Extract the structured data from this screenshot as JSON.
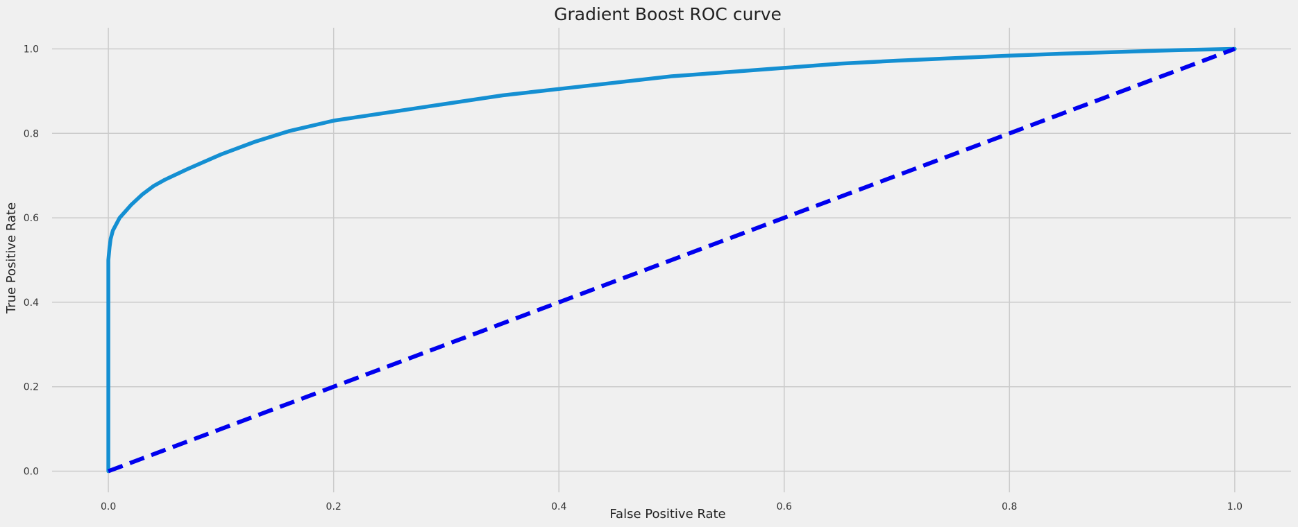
{
  "chart_data": {
    "type": "line",
    "title": "Gradient Boost ROC curve",
    "xlabel": "False Positive Rate",
    "ylabel": "True Positive Rate",
    "xlim": [
      -0.05,
      1.05
    ],
    "ylim": [
      -0.05,
      1.05
    ],
    "x_ticks": [
      0.0,
      0.2,
      0.4,
      0.6,
      0.8,
      1.0
    ],
    "y_ticks": [
      0.0,
      0.2,
      0.4,
      0.6,
      0.8,
      1.0
    ],
    "x_tick_labels": [
      "0.0",
      "0.2",
      "0.4",
      "0.6",
      "0.8",
      "1.0"
    ],
    "y_tick_labels": [
      "0.0",
      "0.2",
      "0.4",
      "0.6",
      "0.8",
      "1.0"
    ],
    "grid": true,
    "legend": "none",
    "series": [
      {
        "style": "solid",
        "color": "#148fd2",
        "x": [
          0.0,
          0.0,
          0.0,
          0.001,
          0.002,
          0.004,
          0.006,
          0.01,
          0.015,
          0.02,
          0.03,
          0.04,
          0.05,
          0.07,
          0.1,
          0.13,
          0.16,
          0.2,
          0.25,
          0.3,
          0.35,
          0.4,
          0.45,
          0.5,
          0.55,
          0.6,
          0.65,
          0.7,
          0.75,
          0.8,
          0.85,
          0.9,
          0.95,
          1.0
        ],
        "y": [
          0.0,
          0.4,
          0.5,
          0.53,
          0.55,
          0.57,
          0.58,
          0.6,
          0.615,
          0.63,
          0.655,
          0.675,
          0.69,
          0.715,
          0.75,
          0.78,
          0.805,
          0.83,
          0.85,
          0.87,
          0.89,
          0.905,
          0.92,
          0.935,
          0.945,
          0.955,
          0.965,
          0.972,
          0.978,
          0.984,
          0.989,
          0.993,
          0.997,
          1.0
        ]
      },
      {
        "style": "dashed",
        "color": "#0000ee",
        "x": [
          0.0,
          1.0
        ],
        "y": [
          0.0,
          1.0
        ]
      }
    ]
  }
}
